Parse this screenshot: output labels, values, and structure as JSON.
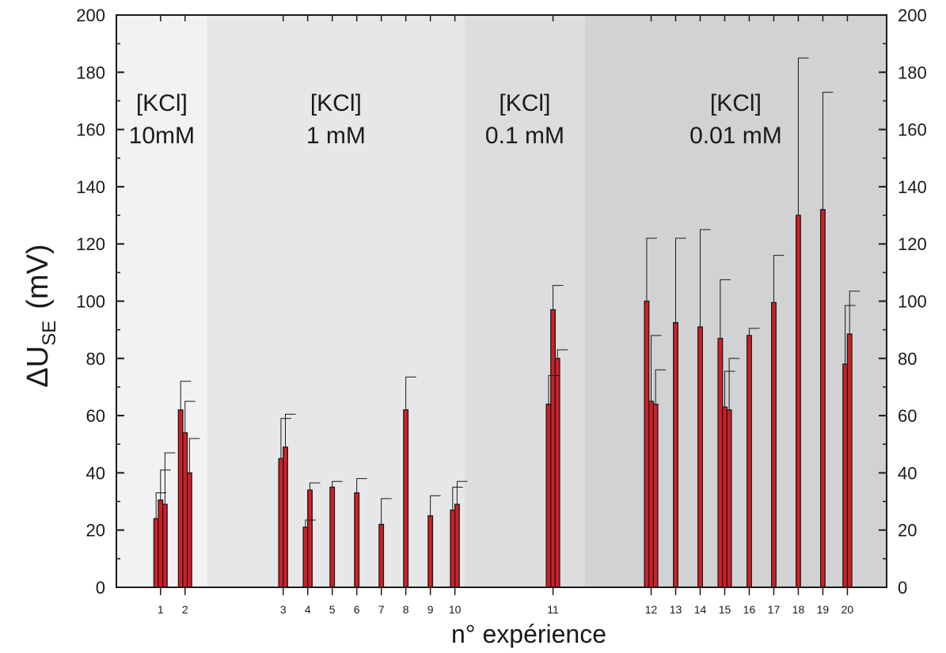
{
  "chart_data": {
    "type": "bar",
    "xlabel": "n° expérience",
    "ylabel": {
      "main": "ΔU",
      "subscript": "SE",
      "unit": "(mV)"
    },
    "ylim": [
      0,
      200
    ],
    "yticks": [
      0,
      20,
      40,
      60,
      80,
      100,
      120,
      140,
      160,
      180,
      200
    ],
    "x_positions": {
      "1": 1,
      "2": 2,
      "3": 6,
      "4": 7,
      "5": 8,
      "6": 9,
      "7": 10,
      "8": 11,
      "9": 12,
      "10": 13,
      "11": 17,
      "12": 21,
      "13": 22,
      "14": 23,
      "15": 24,
      "16": 25,
      "17": 26,
      "18": 27,
      "19": 28,
      "20": 29
    },
    "xlim": [
      -0.8,
      30.6
    ],
    "regions": [
      {
        "line1": "[KCl]",
        "line2": "10mM",
        "x_start": -0.8,
        "x_end": 2.9,
        "color": "#f1f2f4"
      },
      {
        "line1": "[KCl]",
        "line2": "1 mM",
        "x_start": 2.9,
        "x_end": 13.4,
        "color": "#e6e7e9"
      },
      {
        "line1": "[KCl]",
        "line2": "0.1 mM",
        "x_start": 13.4,
        "x_end": 18.3,
        "color": "#dcdddf"
      },
      {
        "line1": "[KCl]",
        "line2": "0.01 mM",
        "x_start": 18.3,
        "x_end": 30.6,
        "color": "#d1d2d4"
      }
    ],
    "experiments": [
      {
        "label": "1",
        "bars": [
          {
            "value": 24,
            "error": 9
          },
          {
            "value": 30.5,
            "error": 10.5
          },
          {
            "value": 29,
            "error": 18
          }
        ]
      },
      {
        "label": "2",
        "bars": [
          {
            "value": 62,
            "error": 10
          },
          {
            "value": 54,
            "error": 11
          },
          {
            "value": 40,
            "error": 12
          }
        ]
      },
      {
        "label": "3",
        "bars": [
          {
            "value": 45,
            "error": 14
          },
          {
            "value": 49,
            "error": 11.5
          }
        ]
      },
      {
        "label": "4",
        "bars": [
          {
            "value": 21,
            "error": 2.5
          },
          {
            "value": 34,
            "error": 2.5
          }
        ]
      },
      {
        "label": "5",
        "bars": [
          {
            "value": 35,
            "error": 2
          }
        ]
      },
      {
        "label": "6",
        "bars": [
          {
            "value": 33,
            "error": 5
          }
        ]
      },
      {
        "label": "7",
        "bars": [
          {
            "value": 22,
            "error": 9
          }
        ]
      },
      {
        "label": "8",
        "bars": [
          {
            "value": 62,
            "error": 11.5
          }
        ]
      },
      {
        "label": "9",
        "bars": [
          {
            "value": 25,
            "error": 7
          }
        ]
      },
      {
        "label": "10",
        "bars": [
          {
            "value": 27,
            "error": 8
          },
          {
            "value": 29,
            "error": 8
          }
        ]
      },
      {
        "label": "11",
        "bars": [
          {
            "value": 64,
            "error": 10
          },
          {
            "value": 97,
            "error": 8.5
          },
          {
            "value": 80,
            "error": 3
          }
        ]
      },
      {
        "label": "12",
        "bars": [
          {
            "value": 100,
            "error": 22
          },
          {
            "value": 65,
            "error": 23
          },
          {
            "value": 64,
            "error": 12
          }
        ]
      },
      {
        "label": "13",
        "bars": [
          {
            "value": 92.5,
            "error": 29.5
          }
        ]
      },
      {
        "label": "14",
        "bars": [
          {
            "value": 91,
            "error": 34
          }
        ]
      },
      {
        "label": "15",
        "bars": [
          {
            "value": 87,
            "error": 20.5
          },
          {
            "value": 63,
            "error": 12.5
          },
          {
            "value": 62,
            "error": 18
          }
        ]
      },
      {
        "label": "16",
        "bars": [
          {
            "value": 88,
            "error": 2.5
          }
        ]
      },
      {
        "label": "17",
        "bars": [
          {
            "value": 99.5,
            "error": 16.5
          }
        ]
      },
      {
        "label": "18",
        "bars": [
          {
            "value": 130,
            "error": 55
          }
        ]
      },
      {
        "label": "19",
        "bars": [
          {
            "value": 132,
            "error": 41
          }
        ]
      },
      {
        "label": "20",
        "bars": [
          {
            "value": 78,
            "error": 20.5
          },
          {
            "value": 88.5,
            "error": 15
          }
        ]
      }
    ],
    "bar_color": "#d11f27",
    "bar_stroke": "#1a1a1a",
    "grid": false
  }
}
